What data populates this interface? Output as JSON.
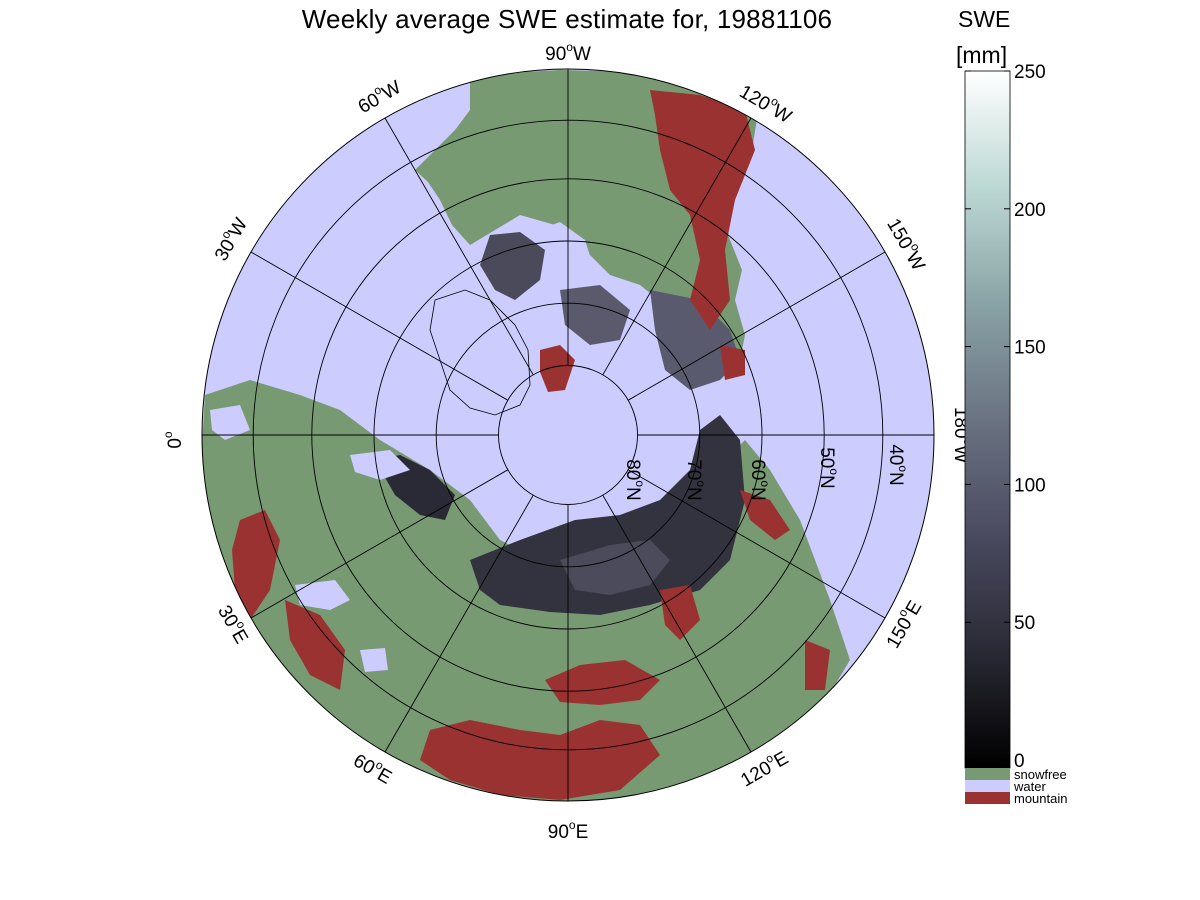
{
  "title": "Weekly average SWE estimate for, 19881106",
  "colorbar": {
    "title_line1": "SWE",
    "title_line2": "[mm]",
    "ticks": [
      "250",
      "200",
      "150",
      "100",
      "50",
      "0"
    ],
    "tick_values": [
      250,
      200,
      150,
      100,
      50,
      0
    ],
    "range": [
      0,
      250
    ],
    "gradient_colors": [
      "#000000",
      "#2a2a35",
      "#4a4a60",
      "#6a7382",
      "#8aa3a6",
      "#bcd8d4",
      "#ffffff"
    ],
    "categories": [
      {
        "label": "snowfree",
        "color": "#779a72"
      },
      {
        "label": "water",
        "color": "#ccccff"
      },
      {
        "label": "mountain",
        "color": "#9a3232"
      }
    ]
  },
  "map": {
    "projection": "north polar stereographic",
    "ocean_color": "#ccccff",
    "lon_labels": [
      {
        "base": "90",
        "sup": "o",
        "suf": "W"
      },
      {
        "base": "120",
        "sup": "o",
        "suf": "W"
      },
      {
        "base": "150",
        "sup": "o",
        "suf": "W"
      },
      {
        "base": "180",
        "sup": "o",
        "suf": "W"
      },
      {
        "base": "150",
        "sup": "o",
        "suf": "E"
      },
      {
        "base": "120",
        "sup": "o",
        "suf": "E"
      },
      {
        "base": "90",
        "sup": "o",
        "suf": "E"
      },
      {
        "base": "60",
        "sup": "o",
        "suf": "E"
      },
      {
        "base": "30",
        "sup": "o",
        "suf": "E"
      },
      {
        "base": "0",
        "sup": "o",
        "suf": ""
      },
      {
        "base": "30",
        "sup": "o",
        "suf": "W"
      },
      {
        "base": "60",
        "sup": "o",
        "suf": "W"
      }
    ],
    "lat_labels": [
      {
        "base": "80",
        "sup": "o",
        "suf": "N"
      },
      {
        "base": "70",
        "sup": "o",
        "suf": "N"
      },
      {
        "base": "60",
        "sup": "o",
        "suf": "N"
      },
      {
        "base": "50",
        "sup": "o",
        "suf": "N"
      },
      {
        "base": "40",
        "sup": "o",
        "suf": "N"
      }
    ]
  }
}
